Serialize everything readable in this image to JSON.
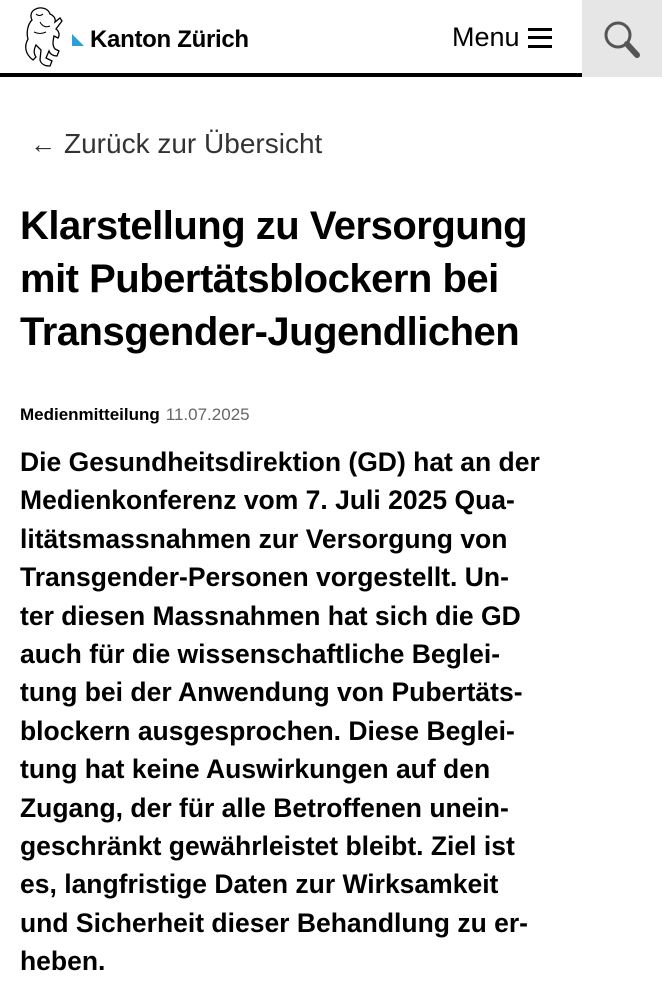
{
  "header": {
    "brand": "Kanton Zürich",
    "menu_label": "Menu",
    "logo": "zurich-lion-logo"
  },
  "back_link": "Zurück zur Übersicht",
  "title_lines": [
    "Klarstellung zu Versorgung",
    "mit Pubertätsblockern bei",
    "Transgender-Jugendlichen"
  ],
  "meta": {
    "type": "Medienmitteilung",
    "date": "11.07.2025"
  },
  "lead_lines": [
    "Die Gesundheitsdirektion (GD) hat an der",
    "Medienkonferenz vom 7. Juli 2025 Qua-",
    "litätsmassnahmen zur Versorgung von",
    "Transgender-Personen vorgestellt. Un-",
    "ter diesen Massnahmen hat sich die GD",
    "auch für die wissenschaftliche Beglei-",
    "tung bei der Anwendung von Pubertäts-",
    "blockern ausgesprochen. Diese Beglei-",
    "tung hat keine Auswirkungen auf den",
    "Zugang, der für alle Betroffenen unein-",
    "geschränkt gewährleistet bleibt. Ziel ist",
    "es, langfristige Daten zur Wirksamkeit",
    "und Sicherheit dieser Behandlung zu er-",
    "heben."
  ],
  "colors": {
    "accent": "#2a9fd8",
    "search_bg": "#e6e6e6"
  }
}
